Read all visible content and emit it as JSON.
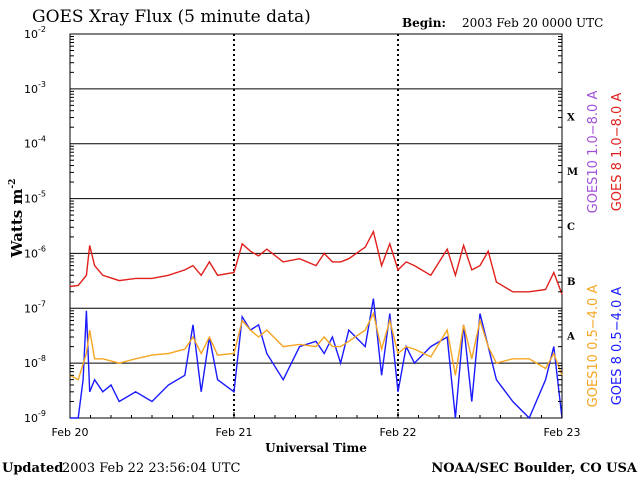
{
  "chart_data": {
    "type": "line",
    "title": "GOES Xray Flux (5 minute data)",
    "begin_label": "Begin:",
    "begin_value": "2003 Feb 20 0000 UTC",
    "xlabel": "Universal Time",
    "ylabel": "Watts m",
    "ylabel_exp": "-2",
    "yscale": "log",
    "ylim": [
      1e-09,
      0.01
    ],
    "xlim": [
      0,
      3
    ],
    "x_unit": "days since 2003 Feb 20 0000 UTC",
    "x_ticks": [
      {
        "x": 0,
        "label": "Feb 20"
      },
      {
        "x": 1,
        "label": "Feb 21"
      },
      {
        "x": 2,
        "label": "Feb 22"
      },
      {
        "x": 3,
        "label": "Feb 23"
      }
    ],
    "y_ticks": [
      {
        "exp": -9,
        "base": "10",
        "sup": "-9"
      },
      {
        "exp": -8,
        "base": "10",
        "sup": "-8"
      },
      {
        "exp": -7,
        "base": "10",
        "sup": "-7"
      },
      {
        "exp": -6,
        "base": "10",
        "sup": "-6"
      },
      {
        "exp": -5,
        "base": "10",
        "sup": "-5"
      },
      {
        "exp": -4,
        "base": "10",
        "sup": "-4"
      },
      {
        "exp": -3,
        "base": "10",
        "sup": "-3"
      },
      {
        "exp": -2,
        "base": "10",
        "sup": "-2"
      }
    ],
    "flare_classes": [
      {
        "label": "A",
        "exp": -7.5
      },
      {
        "label": "B",
        "exp": -6.5
      },
      {
        "label": "C",
        "exp": -5.5
      },
      {
        "label": "M",
        "exp": -4.5
      },
      {
        "label": "X",
        "exp": -3.5
      }
    ],
    "grid": true,
    "series": [
      {
        "name": "GOES 8 1.0-8.0 A",
        "color": "#e0201c",
        "x": [
          0,
          0.05,
          0.1,
          0.12,
          0.15,
          0.2,
          0.3,
          0.4,
          0.5,
          0.6,
          0.7,
          0.75,
          0.8,
          0.85,
          0.9,
          1.0,
          1.05,
          1.1,
          1.15,
          1.2,
          1.3,
          1.4,
          1.5,
          1.55,
          1.6,
          1.65,
          1.7,
          1.8,
          1.85,
          1.9,
          1.95,
          2.0,
          2.05,
          2.1,
          2.2,
          2.3,
          2.35,
          2.4,
          2.45,
          2.5,
          2.55,
          2.6,
          2.7,
          2.8,
          2.9,
          2.95,
          3.0
        ],
        "values": [
          2.5e-07,
          2.6e-07,
          4e-07,
          1.4e-06,
          6e-07,
          4e-07,
          3.2e-07,
          3.5e-07,
          3.5e-07,
          4e-07,
          5e-07,
          6e-07,
          4e-07,
          7e-07,
          4e-07,
          4.5e-07,
          1.5e-06,
          1.1e-06,
          9e-07,
          1.2e-06,
          7e-07,
          8e-07,
          6e-07,
          1e-06,
          7e-07,
          7e-07,
          8e-07,
          1.3e-06,
          2.5e-06,
          6e-07,
          1.5e-06,
          5e-07,
          7e-07,
          6e-07,
          4e-07,
          1.2e-06,
          4e-07,
          1.4e-06,
          5e-07,
          6e-07,
          1.1e-06,
          3e-07,
          2e-07,
          2e-07,
          2.2e-07,
          4.5e-07,
          1.8e-07
        ]
      },
      {
        "name": "GOES10 1.0-8.0 A",
        "color": "#a050d8",
        "x": [],
        "values": []
      },
      {
        "name": "GOES 8 0.5-4.0 A",
        "color": "#1a1aff",
        "x": [
          0,
          0.05,
          0.08,
          0.1,
          0.12,
          0.15,
          0.2,
          0.25,
          0.3,
          0.4,
          0.5,
          0.6,
          0.7,
          0.75,
          0.8,
          0.85,
          0.9,
          1.0,
          1.05,
          1.1,
          1.15,
          1.2,
          1.3,
          1.4,
          1.5,
          1.55,
          1.6,
          1.65,
          1.7,
          1.8,
          1.85,
          1.9,
          1.95,
          2.0,
          2.05,
          2.1,
          2.2,
          2.3,
          2.35,
          2.4,
          2.45,
          2.5,
          2.55,
          2.6,
          2.7,
          2.8,
          2.9,
          2.95,
          3.0
        ],
        "values": [
          1e-09,
          1e-09,
          5e-09,
          9e-08,
          3e-09,
          5e-09,
          3e-09,
          4e-09,
          2e-09,
          3e-09,
          2e-09,
          4e-09,
          6e-09,
          5e-08,
          3e-09,
          3e-08,
          5e-09,
          3e-09,
          7e-08,
          4e-08,
          5e-08,
          1.5e-08,
          5e-09,
          2e-08,
          2.5e-08,
          1.5e-08,
          3e-08,
          1e-08,
          4e-08,
          2e-08,
          1.5e-07,
          6e-09,
          8e-08,
          3e-09,
          2e-08,
          1e-08,
          2e-08,
          3e-08,
          1e-09,
          5e-08,
          2e-09,
          8e-08,
          2e-08,
          5e-09,
          2e-09,
          1e-09,
          5e-09,
          2e-08,
          1e-09
        ]
      },
      {
        "name": "GOES10 0.5-4.0 A",
        "color": "#f5a623",
        "x": [
          0,
          0.05,
          0.1,
          0.12,
          0.15,
          0.2,
          0.3,
          0.4,
          0.5,
          0.6,
          0.7,
          0.75,
          0.8,
          0.85,
          0.9,
          1.0,
          1.05,
          1.1,
          1.15,
          1.2,
          1.3,
          1.4,
          1.5,
          1.55,
          1.6,
          1.65,
          1.7,
          1.8,
          1.85,
          1.9,
          1.95,
          2.0,
          2.05,
          2.1,
          2.2,
          2.3,
          2.35,
          2.4,
          2.45,
          2.5,
          2.55,
          2.6,
          2.7,
          2.8,
          2.9,
          2.95,
          3.0
        ],
        "values": [
          6e-09,
          5e-09,
          1.5e-08,
          4e-08,
          1.2e-08,
          1.2e-08,
          1e-08,
          1.2e-08,
          1.4e-08,
          1.5e-08,
          1.8e-08,
          3e-08,
          1.5e-08,
          3e-08,
          1.4e-08,
          1.5e-08,
          6e-08,
          4e-08,
          3e-08,
          4e-08,
          2e-08,
          2.2e-08,
          2e-08,
          3e-08,
          2e-08,
          2e-08,
          2.5e-08,
          4e-08,
          8e-08,
          1.8e-08,
          6e-08,
          1.5e-08,
          2e-08,
          1.8e-08,
          1.3e-08,
          4e-08,
          6e-09,
          5e-08,
          1.2e-08,
          6e-08,
          2e-08,
          1e-08,
          1.2e-08,
          1.2e-08,
          8e-09,
          1.5e-08,
          6e-09
        ]
      }
    ]
  },
  "footer": {
    "updated_label": "Updated",
    "updated_value": "2003 Feb 22 23:56:04 UTC",
    "credit": "NOAA/SEC Boulder, CO USA"
  }
}
